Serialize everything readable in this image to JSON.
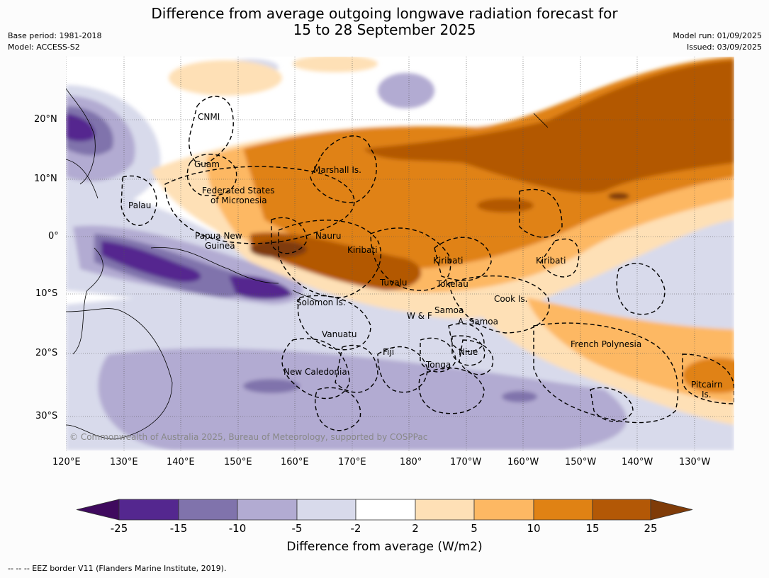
{
  "header": {
    "title_line1": "Difference from average outgoing longwave radiation forecast for",
    "title_line2": "15 to 28 September 2025",
    "base_period": "Base period: 1981-2018",
    "model": "Model: ACCESS-S2",
    "model_run": "Model run: 01/09/2025",
    "issued": "Issued: 03/09/2025"
  },
  "map": {
    "lat_labels": [
      "20°N",
      "10°N",
      "0°",
      "10°S",
      "20°S",
      "30°S"
    ],
    "lon_labels": [
      "120°E",
      "130°E",
      "140°E",
      "150°E",
      "160°E",
      "170°E",
      "180°",
      "170°W",
      "160°W",
      "150°W",
      "140°W",
      "130°W"
    ],
    "region_labels": {
      "cnmi": "CNMI",
      "guam": "Guam",
      "marshall": "Marshall Is.",
      "fsm1": "Federated States",
      "fsm2": "of Micronesia",
      "palau": "Palau",
      "png1": "Papua New",
      "png2": "Guinea",
      "nauru": "Nauru",
      "kiribati_w": "Kiribati",
      "kiribati_c": "Kiribati",
      "kiribati_e": "Kiribati",
      "tuvalu": "Tuvalu",
      "tokelau": "Tokelau",
      "cook": "Cook Is.",
      "solomon": "Solomon Is.",
      "samoa": "Samoa",
      "wf": "W & F",
      "asamoa": "A. Samoa",
      "vanuatu": "Vanuatu",
      "fiji": "Fiji",
      "niue": "Niue",
      "tonga": "Tonga",
      "french_polynesia": "French Polynesia",
      "new_caledonia": "New Caledonia",
      "pitcairn1": "Pitcairn",
      "pitcairn2": "Is."
    },
    "copyright": "© Commonwealth of Australia 2025, Bureau of Meteorology, supported by COSPPac"
  },
  "colorbar": {
    "ticks": [
      "-25",
      "-15",
      "-10",
      "-5",
      "-2",
      "2",
      "5",
      "10",
      "15",
      "25"
    ],
    "colors": [
      "#3f0a5e",
      "#54278f",
      "#8073ac",
      "#b2abd2",
      "#d8daeb",
      "#ffffff",
      "#fee0b6",
      "#fdb863",
      "#e08214",
      "#b35806",
      "#7f3b08"
    ],
    "title": "Difference from average (W/m2)"
  },
  "footnote": "--  --  -- EEZ border V11 (Flanders Marine Institute, 2019)."
}
